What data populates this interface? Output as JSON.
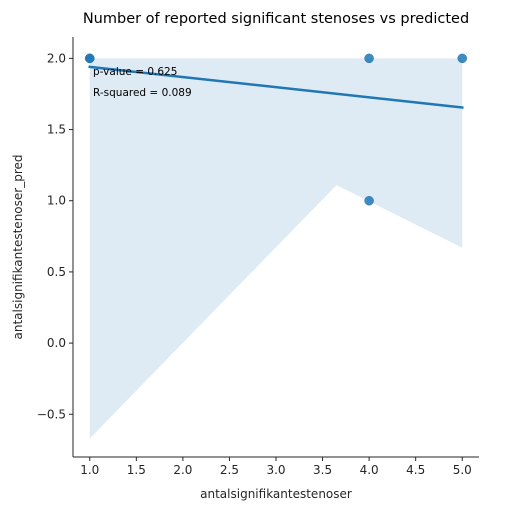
{
  "chart_data": {
    "type": "scatter",
    "title": "Number of reported significant stenoses vs predicted",
    "xlabel": "antalsignifikantestenoser",
    "ylabel": "antalsignifikantestenoser_pred",
    "xlim": [
      0.82,
      5.18
    ],
    "ylim": [
      -0.8,
      2.15
    ],
    "xticks": [
      1.0,
      1.5,
      2.0,
      2.5,
      3.0,
      3.5,
      4.0,
      4.5,
      5.0
    ],
    "xtick_labels": [
      "1.0",
      "1.5",
      "2.0",
      "2.5",
      "3.0",
      "3.5",
      "4.0",
      "4.5",
      "5.0"
    ],
    "yticks": [
      -0.5,
      0.0,
      0.5,
      1.0,
      1.5,
      2.0
    ],
    "ytick_labels": [
      "−0.5",
      "0.0",
      "0.5",
      "1.0",
      "1.5",
      "2.0"
    ],
    "points": [
      {
        "x": 1,
        "y": 2
      },
      {
        "x": 1,
        "y": 2
      },
      {
        "x": 4,
        "y": 2
      },
      {
        "x": 4,
        "y": 1
      },
      {
        "x": 5,
        "y": 2
      }
    ],
    "regression": {
      "x": [
        1,
        5
      ],
      "y": [
        1.94,
        1.655
      ]
    },
    "confidence_band": {
      "x": [
        1,
        3.65,
        5
      ],
      "upper": [
        2.0,
        2.0,
        2.0
      ],
      "lower": [
        -0.67,
        1.11,
        0.67
      ]
    },
    "annotations": [
      "p-value = 0.625",
      "R-squared = 0.089"
    ],
    "grid": false,
    "colors": {
      "points": "#1f77b4",
      "line": "#1f77b4",
      "band": "#1f77b4"
    }
  }
}
